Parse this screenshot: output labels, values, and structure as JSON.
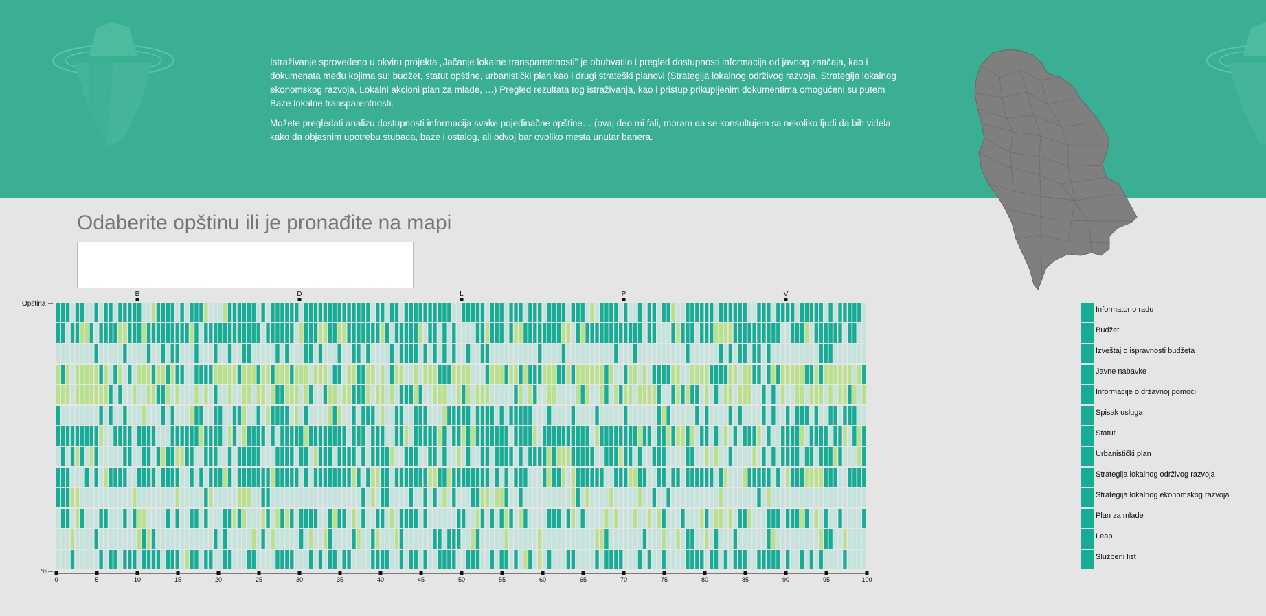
{
  "banner": {
    "paragraphs": [
      "Istraživanje sprovedeno u okviru projekta „Jačanje lokalne transparentnosti\" je obuhvatilo i pregled dostupnosti informacija od javnog značaja, kao i dokumenata među kojima su: budžet, statut opštine, urbanistički plan kao i drugi strateški planovi (Strategija lokalnog održivog razvoja, Strategija lokalnog ekonomskog razvoja, Lokalni akcioni plan za mlade, …) Pregled rezultata tog istraživanja, kao i pristup prikupljenim dokumentima omogućeni su putem Baze lokalne transparentnosti.",
      "Možete pregledati analizu dostupnosti informacija svake pojedinačne opštine… (ovaj deo mi fali, moram da se konsultujem sa nekoliko ljudi da bih videla kako da objasnim upotrebu stubaca, baze i ostalog, ali odvoj bar ovoliko mesta unutar banera."
    ]
  },
  "selector": {
    "title": "Odaberite opštinu ili je pronađite na mapi",
    "search_value": ""
  },
  "colors": {
    "banner": "#3aaf94",
    "available": "#17ac95",
    "partial": "#b9e08a",
    "unavailable": "#c5e3dd",
    "map_fill": "#7f7f7f"
  },
  "icons": [
    "iceberg-icon",
    "serbia-map"
  ],
  "chart_data": {
    "type": "heatmap",
    "y_axis_top_label": "Opština",
    "y_axis_bottom_label": "%",
    "x_ticks": [
      0,
      5,
      10,
      15,
      20,
      25,
      30,
      35,
      40,
      45,
      50,
      55,
      60,
      65,
      70,
      75,
      80,
      85,
      90,
      95,
      100
    ],
    "letter_markers": [
      {
        "label": "B",
        "x": 10
      },
      {
        "label": "D",
        "x": 30
      },
      {
        "label": "L",
        "x": 50
      },
      {
        "label": "P",
        "x": 70
      },
      {
        "label": "V",
        "x": 90
      }
    ],
    "rows": [
      "Informator o radu",
      "Budžet",
      "Izveštaj o ispravnosti budžeta",
      "Javne nabavke",
      "Informacije o državnoj pomoći",
      "Spisak usluga",
      "Statut",
      "Urbanistički plan",
      "Strategija lokalnog održivog razvoja",
      "Strategija lokalnog ekonomskog razvoja",
      "Plan za mlade",
      "Leap",
      "Službeni list"
    ],
    "column_count": 170,
    "cell_states": [
      "available",
      "partial",
      "unavailable"
    ],
    "row_share_available": [
      0.72,
      0.7,
      0.2,
      0.3,
      0.18,
      0.42,
      0.66,
      0.62,
      0.66,
      0.12,
      0.38,
      0.14,
      0.48
    ],
    "row_share_partial": [
      0.04,
      0.16,
      0.02,
      0.46,
      0.5,
      0.04,
      0.1,
      0.08,
      0.08,
      0.12,
      0.14,
      0.1,
      0.02
    ]
  }
}
